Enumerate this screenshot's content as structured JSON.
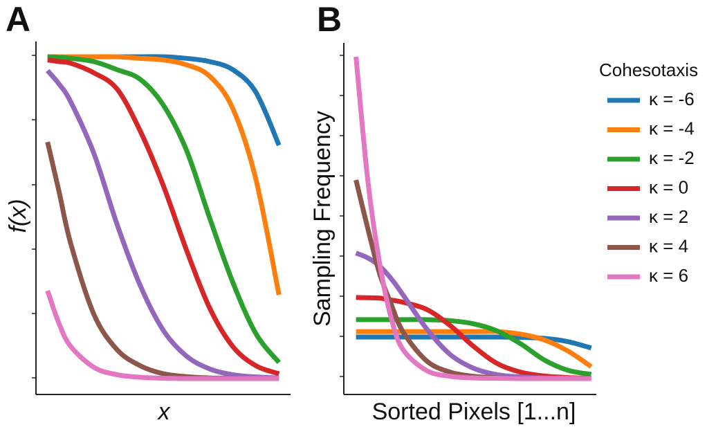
{
  "chart_data": [
    {
      "type": "line",
      "title": "A",
      "x_label": "x",
      "y_label": "f(x)",
      "x": [
        0,
        0.05,
        0.1,
        0.2,
        0.3,
        0.4,
        0.5,
        0.6,
        0.7,
        0.8,
        0.9,
        1
      ],
      "xlim": [
        -0.05,
        1.05
      ],
      "ylim": [
        -0.05,
        1.05
      ],
      "series": [
        {
          "color": "#1f77b4",
          "values": [
            1,
            1,
            1,
            1,
            1,
            1,
            1,
            0.995,
            0.985,
            0.96,
            0.89,
            0.725
          ]
        },
        {
          "color": "#ff7f0e",
          "values": [
            1,
            1,
            1,
            1,
            1,
            0.995,
            0.99,
            0.975,
            0.94,
            0.84,
            0.62,
            0.26
          ]
        },
        {
          "color": "#2ca02c",
          "values": [
            1,
            0.998,
            0.995,
            0.985,
            0.96,
            0.93,
            0.85,
            0.71,
            0.5,
            0.3,
            0.14,
            0.05
          ]
        },
        {
          "color": "#d62728",
          "values": [
            0.99,
            0.985,
            0.98,
            0.95,
            0.9,
            0.77,
            0.6,
            0.4,
            0.22,
            0.1,
            0.04,
            0.015
          ]
        },
        {
          "color": "#9467bd",
          "values": [
            0.957,
            0.915,
            0.86,
            0.7,
            0.48,
            0.29,
            0.15,
            0.07,
            0.03,
            0.012,
            0.005,
            0.002
          ]
        },
        {
          "color": "#8c564b",
          "values": [
            0.735,
            0.58,
            0.42,
            0.2,
            0.09,
            0.04,
            0.015,
            0.006,
            0.002,
            0.001,
            0,
            0
          ]
        },
        {
          "color": "#e377c2",
          "values": [
            0.273,
            0.17,
            0.1,
            0.035,
            0.012,
            0.004,
            0.001,
            0,
            0,
            0,
            0,
            0
          ]
        }
      ]
    },
    {
      "type": "line",
      "title": "B",
      "x_label": "Sorted Pixels [1...n]",
      "y_label": "Sampling Frequency",
      "legend_title": "Cohesotaxis",
      "legend": "right",
      "x": [
        0,
        0.05,
        0.1,
        0.15,
        0.2,
        0.3,
        0.4,
        0.5,
        0.6,
        0.7,
        0.8,
        0.9,
        1
      ],
      "xlim": [
        -0.05,
        1.05
      ],
      "ylim": [
        -0.05,
        1.05
      ],
      "series": [
        {
          "name": "κ = -6",
          "color": "#1f77b4",
          "values": [
            0.129,
            0.129,
            0.129,
            0.129,
            0.129,
            0.129,
            0.129,
            0.129,
            0.129,
            0.128,
            0.125,
            0.115,
            0.095
          ]
        },
        {
          "name": "κ = -4",
          "color": "#ff7f0e",
          "values": [
            0.146,
            0.146,
            0.146,
            0.146,
            0.146,
            0.146,
            0.146,
            0.146,
            0.146,
            0.138,
            0.12,
            0.086,
            0.037
          ]
        },
        {
          "name": "κ = -2",
          "color": "#2ca02c",
          "values": [
            0.183,
            0.183,
            0.183,
            0.183,
            0.183,
            0.183,
            0.18,
            0.17,
            0.148,
            0.108,
            0.058,
            0.026,
            0.013
          ]
        },
        {
          "name": "κ = 0",
          "color": "#d62728",
          "values": [
            0.252,
            0.251,
            0.25,
            0.244,
            0.237,
            0.215,
            0.165,
            0.1,
            0.047,
            0.02,
            0.008,
            0.003,
            0.001
          ]
        },
        {
          "name": "κ = 2",
          "color": "#9467bd",
          "values": [
            0.39,
            0.375,
            0.35,
            0.31,
            0.26,
            0.155,
            0.075,
            0.032,
            0.012,
            0.005,
            0.002,
            0.001,
            0
          ]
        },
        {
          "name": "κ = 4",
          "color": "#8c564b",
          "values": [
            0.617,
            0.467,
            0.327,
            0.23,
            0.145,
            0.055,
            0.02,
            0.007,
            0.002,
            0.001,
            0,
            0,
            0
          ]
        },
        {
          "name": "κ = 6",
          "color": "#e377c2",
          "values": [
            1.0,
            0.617,
            0.36,
            0.187,
            0.09,
            0.025,
            0.007,
            0.002,
            0.001,
            0,
            0,
            0,
            0
          ]
        }
      ]
    }
  ]
}
